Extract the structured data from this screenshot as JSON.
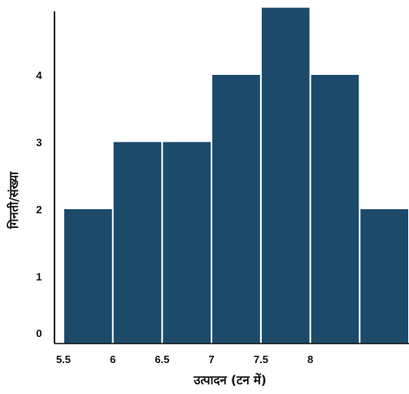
{
  "chart_data": {
    "type": "bar",
    "title": "",
    "xlabel": "उत्पादन (टन में)",
    "ylabel": "गिनती/संख्या",
    "x_ticks": [
      "5.5",
      "6",
      "6.5",
      "7",
      "7.5",
      "8"
    ],
    "y_ticks": [
      "0",
      "1",
      "2",
      "3",
      "4"
    ],
    "bins": [
      {
        "start": 5.5,
        "end": 6.0,
        "count": 2
      },
      {
        "start": 6.0,
        "end": 6.5,
        "count": 3
      },
      {
        "start": 6.5,
        "end": 7.0,
        "count": 3
      },
      {
        "start": 7.0,
        "end": 7.5,
        "count": 4
      },
      {
        "start": 7.5,
        "end": 8.0,
        "count": 5
      },
      {
        "start": 8.0,
        "end": 8.5,
        "count": 4
      },
      {
        "start": 8.5,
        "end": 9.0,
        "count": 2
      }
    ],
    "xlim": [
      5.5,
      9.0
    ],
    "ylim": [
      0,
      5
    ],
    "bar_color": "#1b4a6b",
    "grid": false
  }
}
